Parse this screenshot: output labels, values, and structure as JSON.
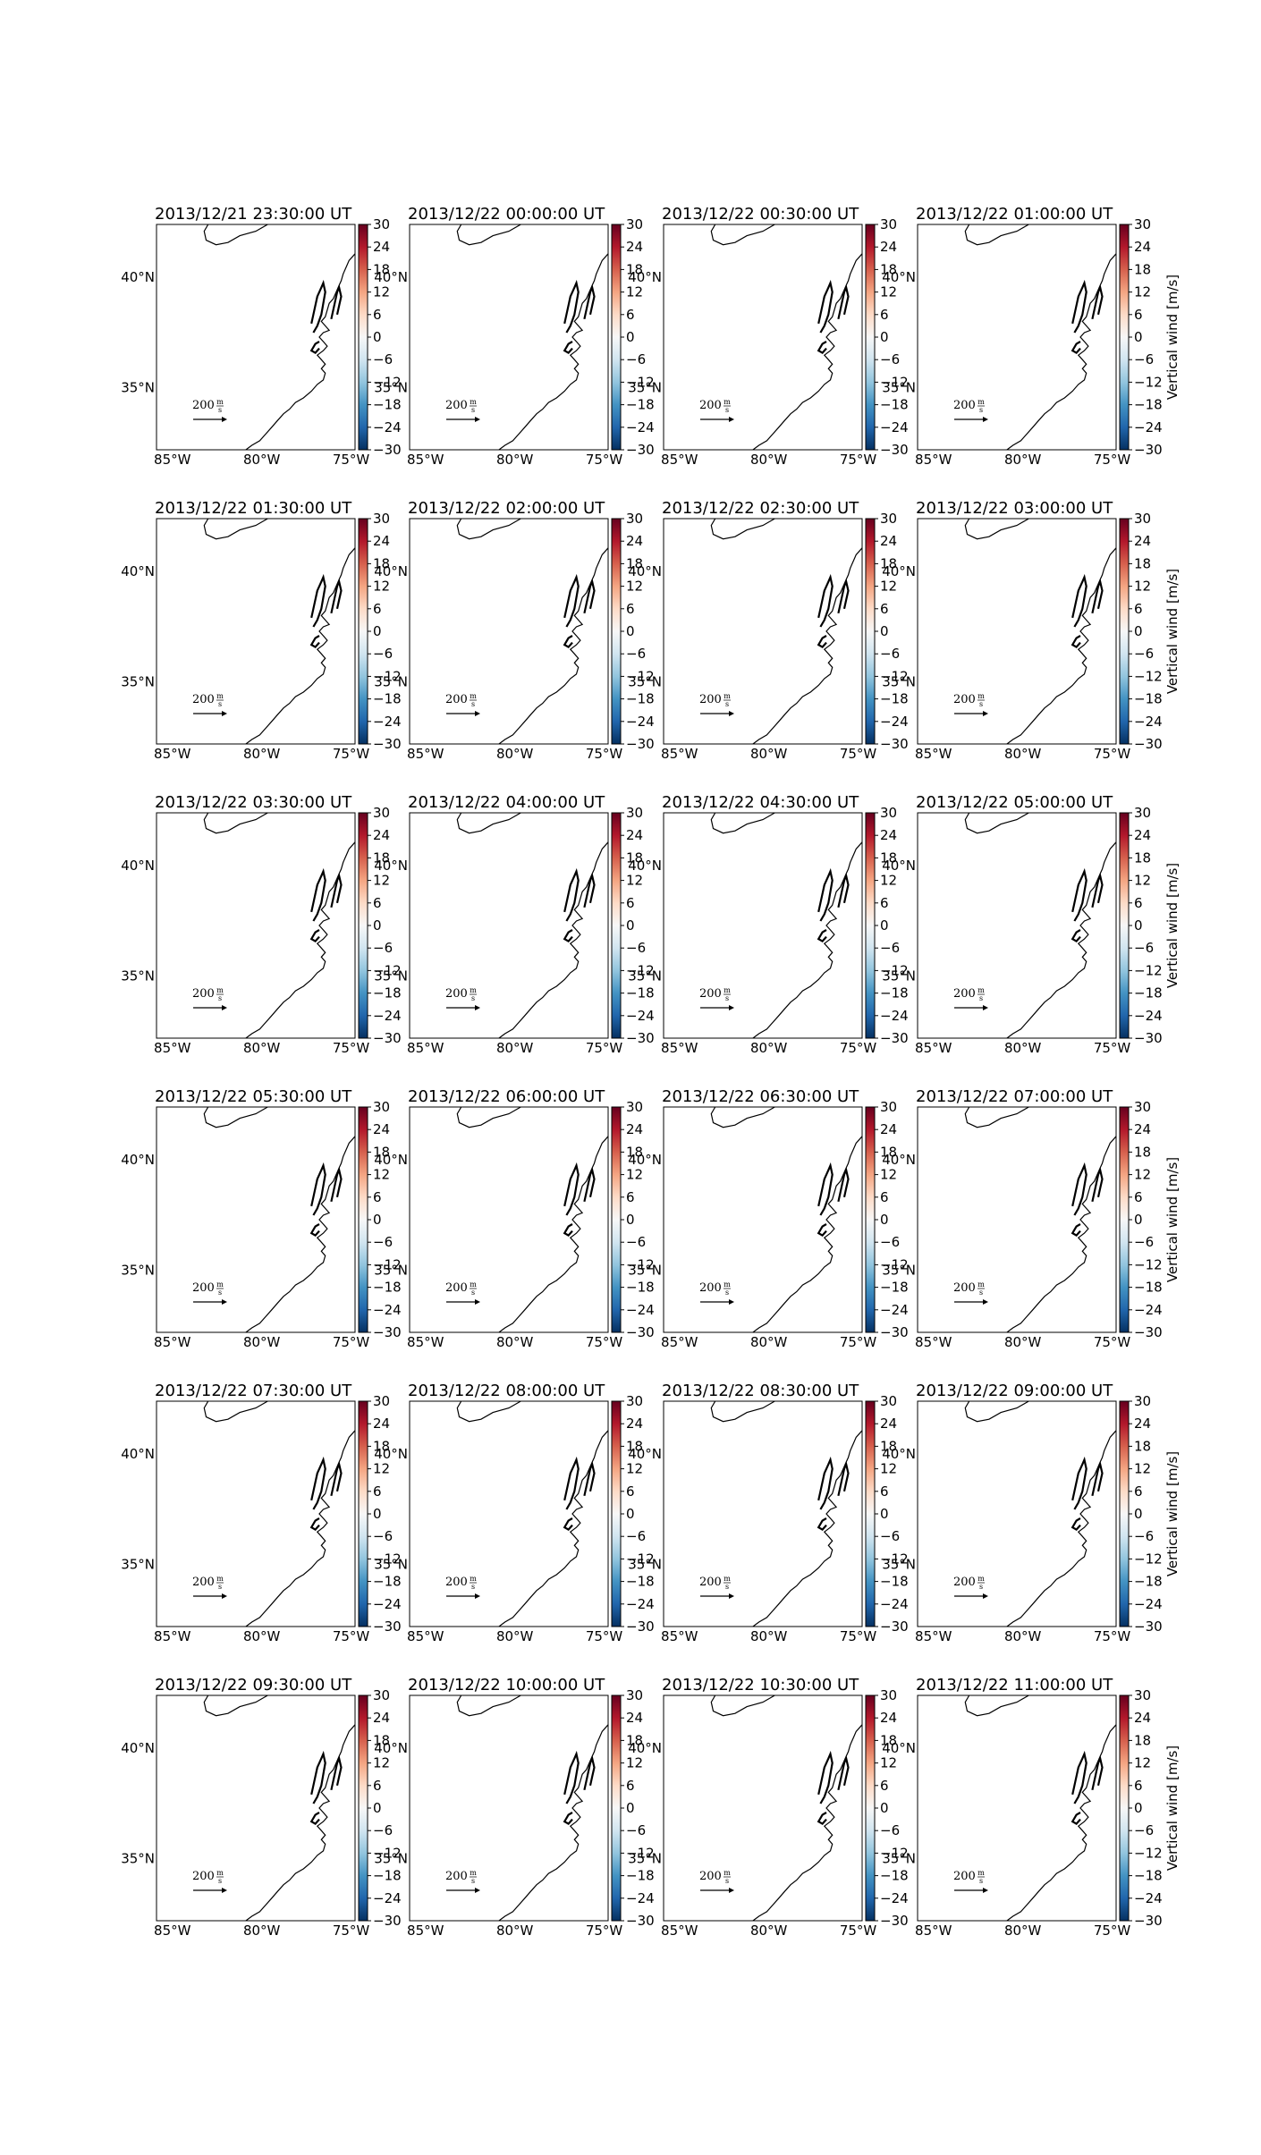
{
  "figure": {
    "colors": {
      "background": "#ffffff",
      "coastline": "#000000",
      "colormap": [
        "#67001f",
        "#b2182b",
        "#d6604d",
        "#f4a582",
        "#fddbc7",
        "#f7f7f7",
        "#d1e5f0",
        "#92c5de",
        "#4393c3",
        "#2166ac",
        "#053061"
      ]
    }
  },
  "panels": [
    {
      "title": "2013/12/21 23:30:00 UT"
    },
    {
      "title": "2013/12/22 00:00:00 UT"
    },
    {
      "title": "2013/12/22 00:30:00 UT"
    },
    {
      "title": "2013/12/22 01:00:00 UT"
    },
    {
      "title": "2013/12/22 01:30:00 UT"
    },
    {
      "title": "2013/12/22 02:00:00 UT"
    },
    {
      "title": "2013/12/22 02:30:00 UT"
    },
    {
      "title": "2013/12/22 03:00:00 UT"
    },
    {
      "title": "2013/12/22 03:30:00 UT"
    },
    {
      "title": "2013/12/22 04:00:00 UT"
    },
    {
      "title": "2013/12/22 04:30:00 UT"
    },
    {
      "title": "2013/12/22 05:00:00 UT"
    },
    {
      "title": "2013/12/22 05:30:00 UT"
    },
    {
      "title": "2013/12/22 06:00:00 UT"
    },
    {
      "title": "2013/12/22 06:30:00 UT"
    },
    {
      "title": "2013/12/22 07:00:00 UT"
    },
    {
      "title": "2013/12/22 07:30:00 UT"
    },
    {
      "title": "2013/12/22 08:00:00 UT"
    },
    {
      "title": "2013/12/22 08:30:00 UT"
    },
    {
      "title": "2013/12/22 09:00:00 UT"
    },
    {
      "title": "2013/12/22 09:30:00 UT"
    },
    {
      "title": "2013/12/22 10:00:00 UT"
    },
    {
      "title": "2013/12/22 10:30:00 UT"
    },
    {
      "title": "2013/12/22 11:00:00 UT"
    }
  ],
  "map": {
    "lon_ticks": [
      "85°W",
      "80°W",
      "75°W"
    ],
    "lat_ticks": [
      "40°N",
      "35°N"
    ],
    "vector_key": {
      "value": "200",
      "unit_numerator": "m",
      "unit_denominator": "s"
    }
  },
  "colorbar": {
    "ticks": [
      "30",
      "24",
      "18",
      "12",
      "6",
      "0",
      "−6",
      "−12",
      "−18",
      "−24",
      "−30"
    ],
    "label": "Vertical wind [m/s]"
  }
}
